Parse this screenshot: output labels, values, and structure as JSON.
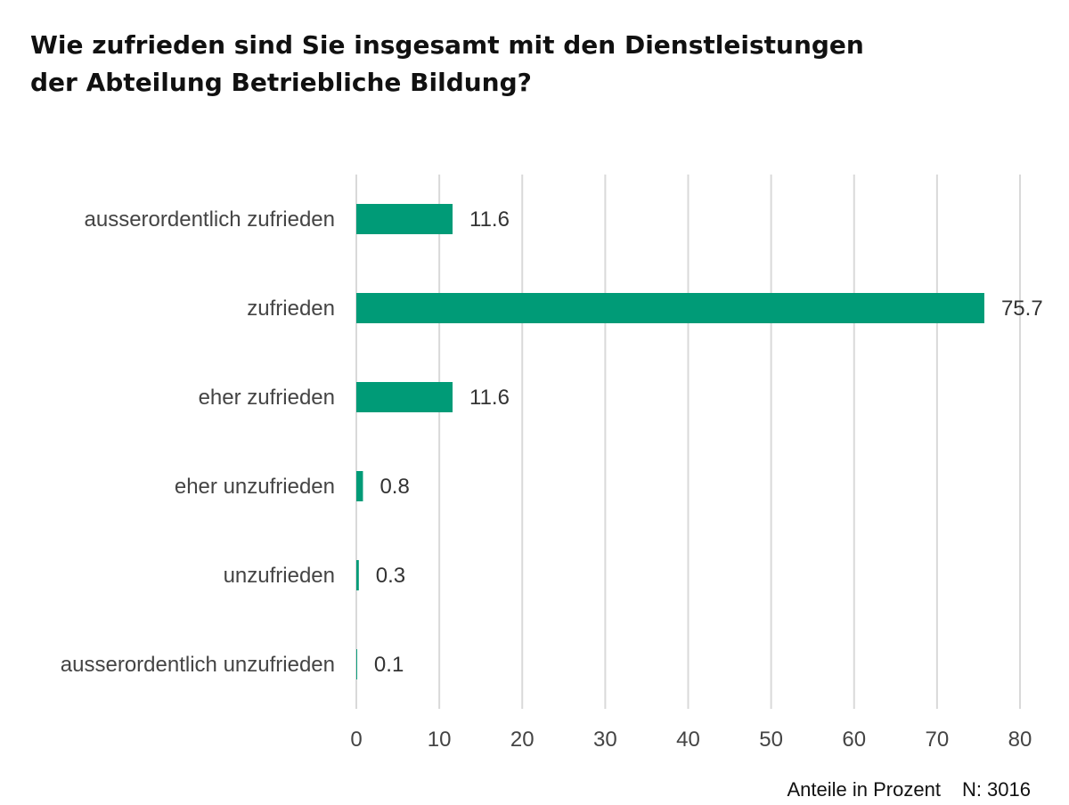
{
  "chart_data": {
    "type": "bar",
    "orientation": "horizontal",
    "title": "Wie zufrieden sind Sie insgesamt mit den Dienstleistungen der Abteilung Betriebliche Bildung?",
    "title_lines": [
      "Wie zufrieden sind Sie insgesamt mit den Dienstleistungen",
      "der Abteilung Betriebliche Bildung?"
    ],
    "categories": [
      "ausserordentlich zufrieden",
      "zufrieden",
      "eher zufrieden",
      "eher unzufrieden",
      "unzufrieden",
      "ausserordentlich unzufrieden"
    ],
    "values": [
      11.6,
      75.7,
      11.6,
      0.8,
      0.3,
      0.1
    ],
    "value_labels": [
      "11.6",
      "75.7",
      "11.6",
      "0.8",
      "0.3",
      "0.1"
    ],
    "xlim": [
      0,
      80
    ],
    "xticks": [
      0,
      10,
      20,
      30,
      40,
      50,
      60,
      70,
      80
    ],
    "grid": "vertical",
    "bar_color": "#009B77",
    "grid_color": "#D9D9D9",
    "text_color": "#444444"
  },
  "footer": {
    "unit_note": "Anteile in Prozent",
    "sample_size": "N: 3016"
  }
}
